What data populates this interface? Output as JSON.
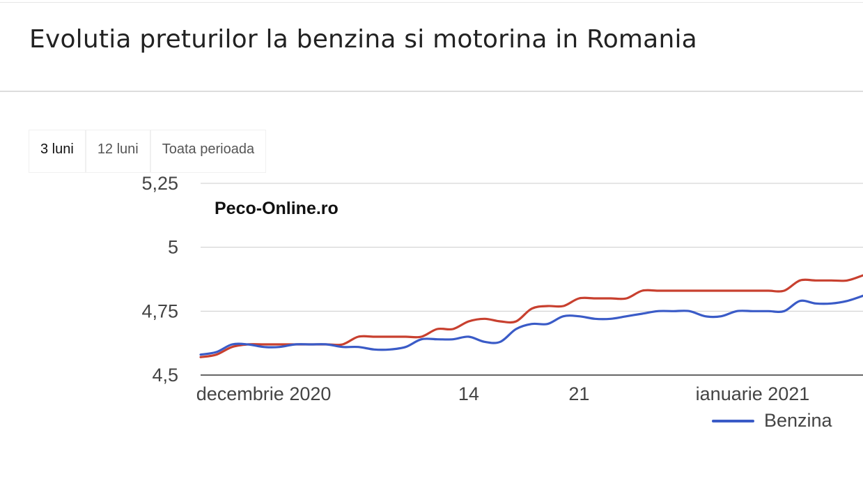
{
  "header": {
    "title": "Evolutia preturilor la benzina si motorina in Romania"
  },
  "range_tabs": [
    {
      "label": "3 luni",
      "active": true
    },
    {
      "label": "12 luni",
      "active": false
    },
    {
      "label": "Toata perioada",
      "active": false
    }
  ],
  "watermark": "Peco-Online.ro",
  "legend": {
    "label": "Benzina",
    "color": "#3a5bc7"
  },
  "chart_data": {
    "type": "line",
    "title": "Evolutia preturilor la benzina si motorina in Romania",
    "ylim": [
      4.5,
      5.25
    ],
    "y_ticks": [
      {
        "value": 4.5,
        "label": "4,5"
      },
      {
        "value": 4.75,
        "label": "4,75"
      },
      {
        "value": 5,
        "label": "5"
      },
      {
        "value": 5.25,
        "label": "5,25"
      }
    ],
    "xlim": [
      "2020-11-27",
      "2021-01-08"
    ],
    "x_ticks": [
      {
        "date": "2020-12-01",
        "label": "decembrie 2020"
      },
      {
        "date": "2020-12-14",
        "label": "14"
      },
      {
        "date": "2020-12-21",
        "label": "21"
      },
      {
        "date": "2021-01-01",
        "label": "ianuarie 2021"
      }
    ],
    "grid": true,
    "legend_position": "bottom-right",
    "series": [
      {
        "name": "Benzina",
        "color": "#3a5bc7",
        "x": [
          "2020-11-27",
          "2020-11-28",
          "2020-11-29",
          "2020-11-30",
          "2020-12-01",
          "2020-12-02",
          "2020-12-03",
          "2020-12-04",
          "2020-12-05",
          "2020-12-06",
          "2020-12-07",
          "2020-12-08",
          "2020-12-09",
          "2020-12-10",
          "2020-12-11",
          "2020-12-12",
          "2020-12-13",
          "2020-12-14",
          "2020-12-15",
          "2020-12-16",
          "2020-12-17",
          "2020-12-18",
          "2020-12-19",
          "2020-12-20",
          "2020-12-21",
          "2020-12-22",
          "2020-12-23",
          "2020-12-24",
          "2020-12-25",
          "2020-12-26",
          "2020-12-27",
          "2020-12-28",
          "2020-12-29",
          "2020-12-30",
          "2020-12-31",
          "2021-01-01",
          "2021-01-02",
          "2021-01-03",
          "2021-01-04",
          "2021-01-05",
          "2021-01-06",
          "2021-01-07",
          "2021-01-08"
        ],
        "values": [
          4.58,
          4.59,
          4.62,
          4.62,
          4.61,
          4.61,
          4.62,
          4.62,
          4.62,
          4.61,
          4.61,
          4.6,
          4.6,
          4.61,
          4.64,
          4.64,
          4.64,
          4.65,
          4.63,
          4.63,
          4.68,
          4.7,
          4.7,
          4.73,
          4.73,
          4.72,
          4.72,
          4.73,
          4.74,
          4.75,
          4.75,
          4.75,
          4.73,
          4.73,
          4.75,
          4.75,
          4.75,
          4.75,
          4.79,
          4.78,
          4.78,
          4.79,
          4.81
        ]
      },
      {
        "color": "#c8402f",
        "x": [
          "2020-11-27",
          "2020-11-28",
          "2020-11-29",
          "2020-11-30",
          "2020-12-01",
          "2020-12-02",
          "2020-12-03",
          "2020-12-04",
          "2020-12-05",
          "2020-12-06",
          "2020-12-07",
          "2020-12-08",
          "2020-12-09",
          "2020-12-10",
          "2020-12-11",
          "2020-12-12",
          "2020-12-13",
          "2020-12-14",
          "2020-12-15",
          "2020-12-16",
          "2020-12-17",
          "2020-12-18",
          "2020-12-19",
          "2020-12-20",
          "2020-12-21",
          "2020-12-22",
          "2020-12-23",
          "2020-12-24",
          "2020-12-25",
          "2020-12-26",
          "2020-12-27",
          "2020-12-28",
          "2020-12-29",
          "2020-12-30",
          "2020-12-31",
          "2021-01-01",
          "2021-01-02",
          "2021-01-03",
          "2021-01-04",
          "2021-01-05",
          "2021-01-06",
          "2021-01-07",
          "2021-01-08"
        ],
        "values": [
          4.57,
          4.58,
          4.61,
          4.62,
          4.62,
          4.62,
          4.62,
          4.62,
          4.62,
          4.62,
          4.65,
          4.65,
          4.65,
          4.65,
          4.65,
          4.68,
          4.68,
          4.71,
          4.72,
          4.71,
          4.71,
          4.76,
          4.77,
          4.77,
          4.8,
          4.8,
          4.8,
          4.8,
          4.83,
          4.83,
          4.83,
          4.83,
          4.83,
          4.83,
          4.83,
          4.83,
          4.83,
          4.83,
          4.87,
          4.87,
          4.87,
          4.87,
          4.89
        ]
      }
    ]
  }
}
